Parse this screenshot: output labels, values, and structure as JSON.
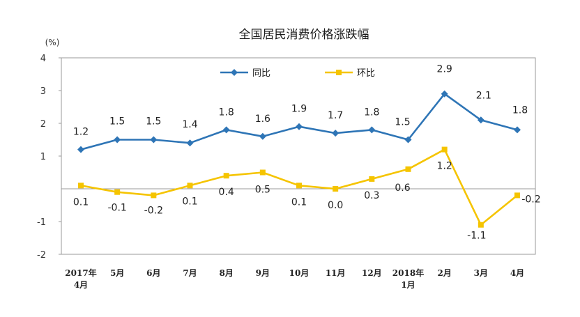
{
  "chart_data": {
    "type": "line",
    "title": "全国居民消费价格涨跌幅",
    "unit": "(%)",
    "ylim": [
      -2,
      4
    ],
    "yticks": [
      "4",
      "3",
      "2",
      "1",
      "-1",
      "-2"
    ],
    "categories": [
      "2017年\n4月",
      "5月",
      "6月",
      "7月",
      "8月",
      "9月",
      "10月",
      "11月",
      "12月",
      "2018年\n1月",
      "2月",
      "3月",
      "4月"
    ],
    "series": [
      {
        "name": "同比",
        "color": "#2e75b6",
        "marker": "diamond",
        "values": [
          1.2,
          1.5,
          1.5,
          1.4,
          1.8,
          1.6,
          1.9,
          1.7,
          1.8,
          1.5,
          2.9,
          2.1,
          1.8
        ],
        "labels": [
          "1.2",
          "1.5",
          "1.5",
          "1.4",
          "1.8",
          "1.6",
          "1.9",
          "1.7",
          "1.8",
          "1.5",
          "2.9",
          "2.1",
          "1.8"
        ]
      },
      {
        "name": "环比",
        "color": "#f5c400",
        "marker": "square",
        "values": [
          0.1,
          -0.1,
          -0.2,
          0.1,
          0.4,
          0.5,
          0.1,
          0.0,
          0.3,
          0.6,
          1.2,
          -1.1,
          -0.2
        ],
        "labels": [
          "0.1",
          "-0.1",
          "-0.2",
          "0.1",
          "0.4",
          "0.5",
          "0.1",
          "0.0",
          "0.3",
          "0.6",
          "1.2",
          "-1.1",
          "-0.2"
        ]
      }
    ],
    "legend": "top-center",
    "grid": false
  }
}
